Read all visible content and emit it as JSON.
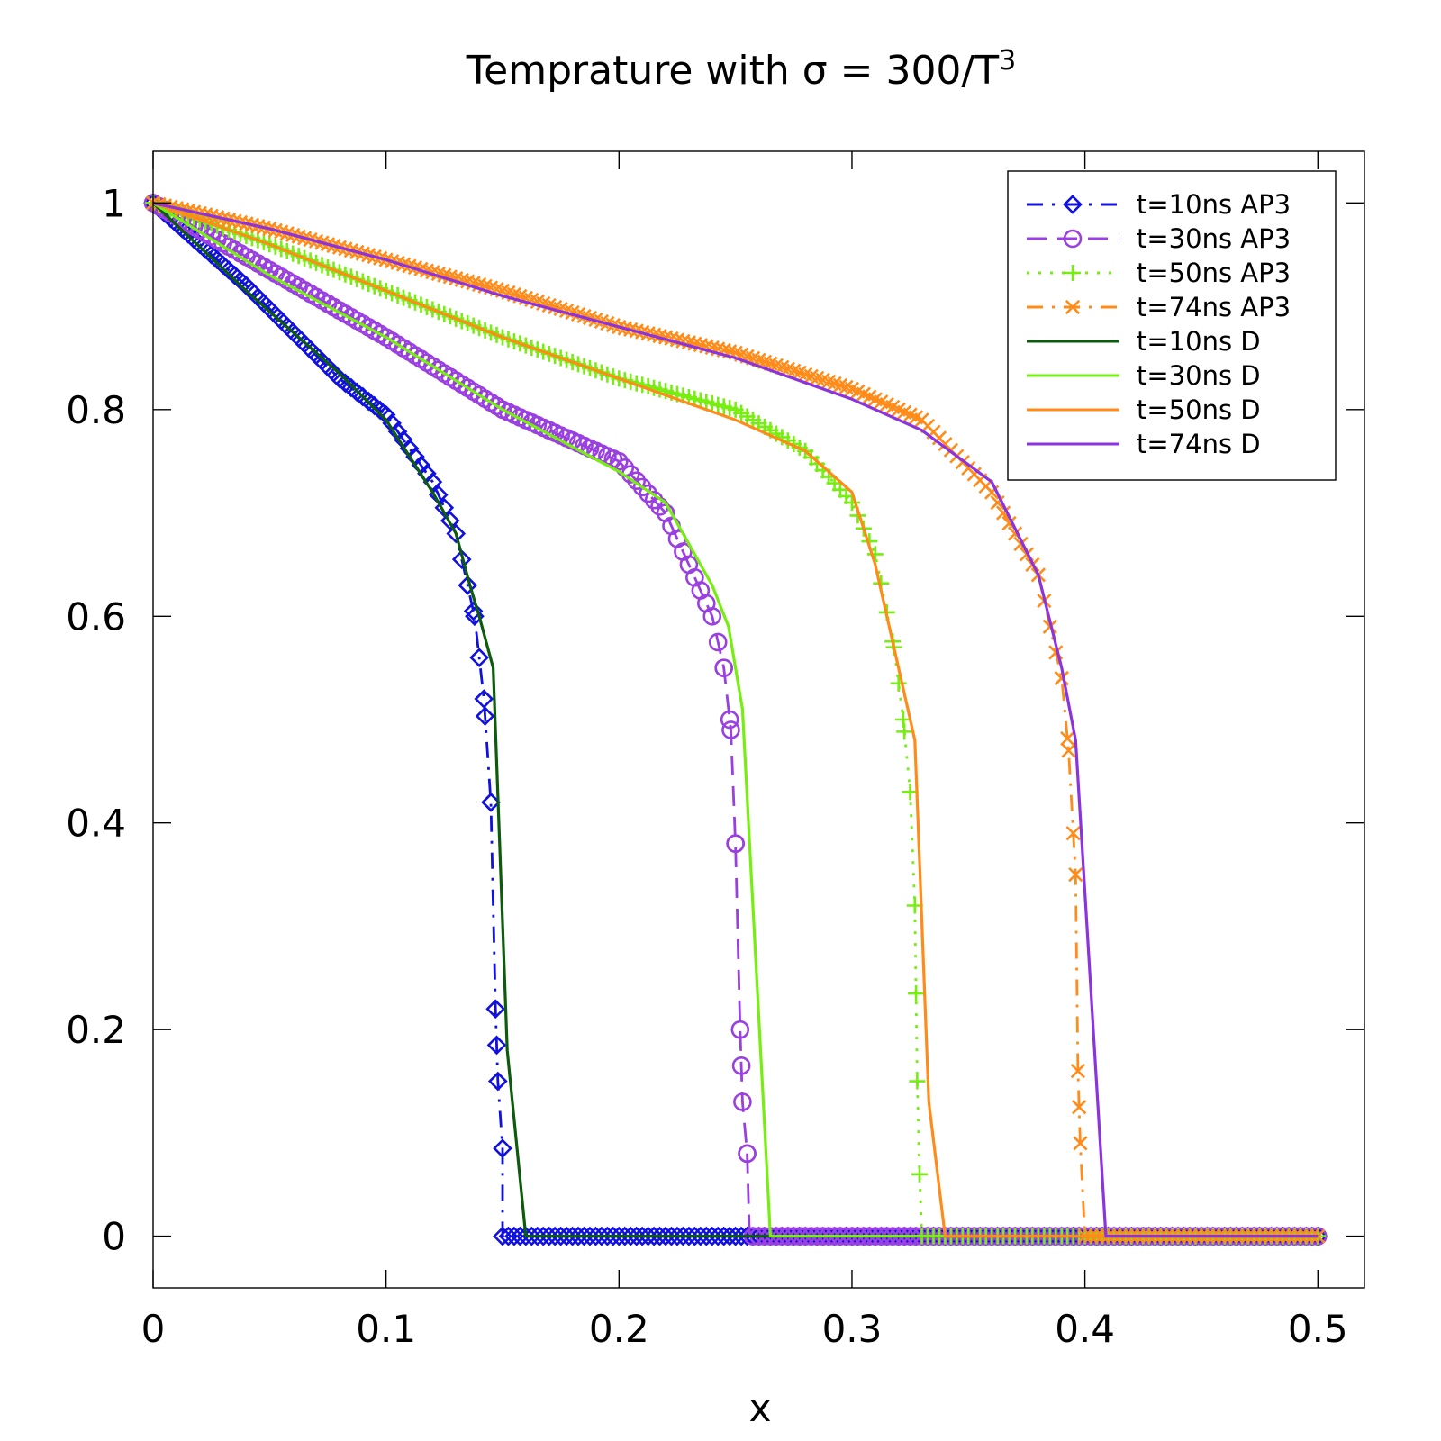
{
  "chart_data": {
    "type": "line",
    "title": "Temprature with σ = 300/T",
    "title_superscript": "3",
    "xlabel": "x",
    "ylabel": "",
    "xlim": [
      0,
      0.52
    ],
    "ylim": [
      -0.05,
      1.05
    ],
    "xticks": [
      0,
      0.1,
      0.2,
      0.3,
      0.4,
      0.5
    ],
    "xtick_labels": [
      "0",
      "0.1",
      "0.2",
      "0.3",
      "0.4",
      "0.5"
    ],
    "yticks": [
      0,
      0.2,
      0.4,
      0.6,
      0.8,
      1
    ],
    "ytick_labels": [
      "0",
      "0.2",
      "0.4",
      "0.6",
      "0.8",
      "1"
    ],
    "grid": false,
    "legend_position": "top-right",
    "series": [
      {
        "name": "t=10ns AP3",
        "color": "#1010e0",
        "dash": "dash-dot",
        "marker": "diamond",
        "front": 0.15,
        "curve": [
          [
            0.0,
            1.0
          ],
          [
            0.04,
            0.92
          ],
          [
            0.08,
            0.83
          ],
          [
            0.1,
            0.795
          ],
          [
            0.12,
            0.73
          ],
          [
            0.13,
            0.68
          ],
          [
            0.138,
            0.6
          ],
          [
            0.142,
            0.52
          ],
          [
            0.145,
            0.42
          ],
          [
            0.147,
            0.22
          ],
          [
            0.148,
            0.15
          ],
          [
            0.15,
            0.085
          ],
          [
            0.15,
            0.0
          ],
          [
            0.5,
            0.0
          ]
        ]
      },
      {
        "name": "t=30ns AP3",
        "color": "#9a3fe0",
        "dash": "dash",
        "marker": "circle",
        "front": 0.256,
        "curve": [
          [
            0.0,
            1.0
          ],
          [
            0.05,
            0.935
          ],
          [
            0.1,
            0.87
          ],
          [
            0.15,
            0.8
          ],
          [
            0.2,
            0.75
          ],
          [
            0.22,
            0.7
          ],
          [
            0.24,
            0.6
          ],
          [
            0.245,
            0.55
          ],
          [
            0.248,
            0.49
          ],
          [
            0.25,
            0.38
          ],
          [
            0.252,
            0.2
          ],
          [
            0.253,
            0.13
          ],
          [
            0.255,
            0.08
          ],
          [
            0.256,
            0.0
          ],
          [
            0.5,
            0.0
          ]
        ]
      },
      {
        "name": "t=50ns AP3",
        "color": "#77ee11",
        "dash": "dot",
        "marker": "plus",
        "front": 0.33,
        "curve": [
          [
            0.0,
            1.0
          ],
          [
            0.05,
            0.96
          ],
          [
            0.1,
            0.915
          ],
          [
            0.15,
            0.87
          ],
          [
            0.2,
            0.83
          ],
          [
            0.25,
            0.8
          ],
          [
            0.28,
            0.76
          ],
          [
            0.3,
            0.71
          ],
          [
            0.31,
            0.66
          ],
          [
            0.318,
            0.57
          ],
          [
            0.322,
            0.5
          ],
          [
            0.325,
            0.43
          ],
          [
            0.327,
            0.32
          ],
          [
            0.328,
            0.15
          ],
          [
            0.329,
            0.06
          ],
          [
            0.33,
            0.0
          ],
          [
            0.5,
            0.0
          ]
        ]
      },
      {
        "name": "t=74ns AP3",
        "color": "#ff8c1a",
        "dash": "dash-dot",
        "marker": "cross",
        "front": 0.4,
        "curve": [
          [
            0.0,
            1.0
          ],
          [
            0.05,
            0.975
          ],
          [
            0.1,
            0.945
          ],
          [
            0.15,
            0.915
          ],
          [
            0.2,
            0.88
          ],
          [
            0.25,
            0.855
          ],
          [
            0.3,
            0.82
          ],
          [
            0.33,
            0.79
          ],
          [
            0.36,
            0.72
          ],
          [
            0.38,
            0.64
          ],
          [
            0.39,
            0.54
          ],
          [
            0.393,
            0.47
          ],
          [
            0.396,
            0.35
          ],
          [
            0.397,
            0.16
          ],
          [
            0.398,
            0.09
          ],
          [
            0.4,
            0.0
          ],
          [
            0.5,
            0.0
          ]
        ]
      },
      {
        "name": "t=10ns D",
        "color": "#0d5c0d",
        "dash": "solid",
        "marker": "none",
        "curve": [
          [
            0.0,
            1.0
          ],
          [
            0.04,
            0.915
          ],
          [
            0.08,
            0.835
          ],
          [
            0.1,
            0.79
          ],
          [
            0.12,
            0.72
          ],
          [
            0.13,
            0.68
          ],
          [
            0.136,
            0.63
          ],
          [
            0.14,
            0.6
          ],
          [
            0.146,
            0.55
          ],
          [
            0.152,
            0.18
          ],
          [
            0.16,
            0.0
          ],
          [
            0.5,
            0.0
          ]
        ]
      },
      {
        "name": "t=30ns D",
        "color": "#77ee11",
        "dash": "solid",
        "marker": "none",
        "curve": [
          [
            0.0,
            1.0
          ],
          [
            0.05,
            0.93
          ],
          [
            0.1,
            0.87
          ],
          [
            0.15,
            0.8
          ],
          [
            0.2,
            0.74
          ],
          [
            0.22,
            0.71
          ],
          [
            0.24,
            0.63
          ],
          [
            0.247,
            0.59
          ],
          [
            0.253,
            0.51
          ],
          [
            0.265,
            0.0
          ],
          [
            0.5,
            0.0
          ]
        ]
      },
      {
        "name": "t=50ns D",
        "color": "#ff8c1a",
        "dash": "solid",
        "marker": "none",
        "curve": [
          [
            0.0,
            1.0
          ],
          [
            0.05,
            0.96
          ],
          [
            0.1,
            0.915
          ],
          [
            0.15,
            0.87
          ],
          [
            0.2,
            0.83
          ],
          [
            0.25,
            0.79
          ],
          [
            0.28,
            0.76
          ],
          [
            0.3,
            0.72
          ],
          [
            0.31,
            0.65
          ],
          [
            0.32,
            0.55
          ],
          [
            0.327,
            0.48
          ],
          [
            0.333,
            0.13
          ],
          [
            0.34,
            0.0
          ],
          [
            0.5,
            0.0
          ]
        ]
      },
      {
        "name": "t=74ns D",
        "color": "#8c33e0",
        "dash": "solid",
        "marker": "none",
        "curve": [
          [
            0.0,
            1.0
          ],
          [
            0.05,
            0.975
          ],
          [
            0.1,
            0.945
          ],
          [
            0.15,
            0.91
          ],
          [
            0.2,
            0.88
          ],
          [
            0.25,
            0.85
          ],
          [
            0.3,
            0.81
          ],
          [
            0.33,
            0.78
          ],
          [
            0.36,
            0.73
          ],
          [
            0.38,
            0.64
          ],
          [
            0.39,
            0.55
          ],
          [
            0.396,
            0.48
          ],
          [
            0.409,
            0.0
          ],
          [
            0.5,
            0.0
          ]
        ]
      }
    ]
  }
}
